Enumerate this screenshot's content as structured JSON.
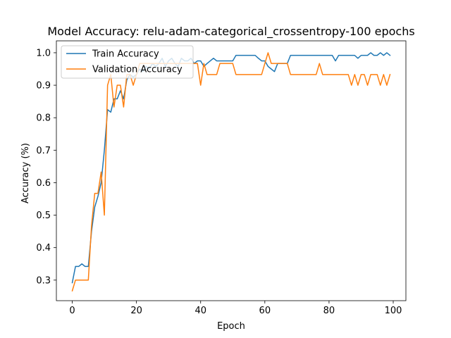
{
  "chart_data": {
    "type": "line",
    "title": "Model Accuracy: relu-adam-categorical_crossentropy-100 epochs",
    "xlabel": "Epoch",
    "ylabel": "Accuracy (%)",
    "xlim": [
      -4.95,
      103.95
    ],
    "ylim": [
      0.2367,
      1.0367
    ],
    "xticks": [
      0,
      20,
      40,
      60,
      80,
      100
    ],
    "yticks": [
      0.3,
      0.4,
      0.5,
      0.6,
      0.7,
      0.8,
      0.9,
      1.0
    ],
    "grid": false,
    "legend_position": "upper-left",
    "series": [
      {
        "name": "Train Accuracy",
        "color": "#1f77b4",
        "x": [
          0,
          1,
          2,
          3,
          4,
          5,
          6,
          7,
          8,
          9,
          10,
          11,
          12,
          13,
          14,
          15,
          16,
          17,
          18,
          19,
          20,
          21,
          22,
          23,
          24,
          25,
          26,
          27,
          28,
          29,
          30,
          31,
          32,
          33,
          34,
          35,
          36,
          37,
          38,
          39,
          40,
          41,
          42,
          43,
          44,
          45,
          46,
          47,
          48,
          49,
          50,
          51,
          52,
          53,
          54,
          55,
          56,
          57,
          58,
          59,
          60,
          61,
          62,
          63,
          64,
          65,
          66,
          67,
          68,
          69,
          70,
          71,
          72,
          73,
          74,
          75,
          76,
          77,
          78,
          79,
          80,
          81,
          82,
          83,
          84,
          85,
          86,
          87,
          88,
          89,
          90,
          91,
          92,
          93,
          94,
          95,
          96,
          97,
          98,
          99
        ],
        "values": [
          0.292,
          0.342,
          0.342,
          0.35,
          0.342,
          0.342,
          0.45,
          0.525,
          0.558,
          0.6,
          0.7,
          0.825,
          0.817,
          0.858,
          0.858,
          0.883,
          0.858,
          0.917,
          0.933,
          0.925,
          0.933,
          0.95,
          0.942,
          0.958,
          0.95,
          0.967,
          0.958,
          0.967,
          0.983,
          0.958,
          0.975,
          0.983,
          0.967,
          0.958,
          0.983,
          0.975,
          0.975,
          0.983,
          0.967,
          0.975,
          0.975,
          0.958,
          0.967,
          0.975,
          0.983,
          0.975,
          0.975,
          0.975,
          0.975,
          0.975,
          0.975,
          0.992,
          0.992,
          0.992,
          0.992,
          0.992,
          0.992,
          0.992,
          0.983,
          0.975,
          0.975,
          0.958,
          0.95,
          0.942,
          0.967,
          0.967,
          0.967,
          0.967,
          0.992,
          0.992,
          0.992,
          0.992,
          0.992,
          0.992,
          0.992,
          0.992,
          0.992,
          0.992,
          0.992,
          0.992,
          0.992,
          0.992,
          0.975,
          0.992,
          0.992,
          0.992,
          0.992,
          0.992,
          0.992,
          0.983,
          0.992,
          0.992,
          0.992,
          1.0,
          0.992,
          0.992,
          1.0,
          0.992,
          1.0,
          0.992
        ]
      },
      {
        "name": "Validation Accuracy",
        "color": "#ff7f0e",
        "x": [
          0,
          1,
          2,
          3,
          4,
          5,
          6,
          7,
          8,
          9,
          10,
          11,
          12,
          13,
          14,
          15,
          16,
          17,
          18,
          19,
          20,
          21,
          22,
          23,
          24,
          25,
          26,
          27,
          28,
          29,
          30,
          31,
          32,
          33,
          34,
          35,
          36,
          37,
          38,
          39,
          40,
          41,
          42,
          43,
          44,
          45,
          46,
          47,
          48,
          49,
          50,
          51,
          52,
          53,
          54,
          55,
          56,
          57,
          58,
          59,
          60,
          61,
          62,
          63,
          64,
          65,
          66,
          67,
          68,
          69,
          70,
          71,
          72,
          73,
          74,
          75,
          76,
          77,
          78,
          79,
          80,
          81,
          82,
          83,
          84,
          85,
          86,
          87,
          88,
          89,
          90,
          91,
          92,
          93,
          94,
          95,
          96,
          97,
          98,
          99
        ],
        "values": [
          0.267,
          0.3,
          0.3,
          0.3,
          0.3,
          0.3,
          0.467,
          0.567,
          0.567,
          0.633,
          0.5,
          0.9,
          0.933,
          0.833,
          0.9,
          0.9,
          0.833,
          0.933,
          0.933,
          0.9,
          0.933,
          0.967,
          0.967,
          0.967,
          0.967,
          0.967,
          0.967,
          0.967,
          0.967,
          0.967,
          0.967,
          0.967,
          0.967,
          0.967,
          0.967,
          0.967,
          0.967,
          0.967,
          0.967,
          0.967,
          0.9,
          0.967,
          0.933,
          0.933,
          0.933,
          0.933,
          0.967,
          0.967,
          0.967,
          0.967,
          0.967,
          0.933,
          0.933,
          0.933,
          0.933,
          0.933,
          0.933,
          0.933,
          0.933,
          0.933,
          0.967,
          1.0,
          0.967,
          0.967,
          0.967,
          0.967,
          0.967,
          0.967,
          0.933,
          0.933,
          0.933,
          0.933,
          0.933,
          0.933,
          0.933,
          0.933,
          0.933,
          0.967,
          0.933,
          0.933,
          0.933,
          0.933,
          0.933,
          0.933,
          0.933,
          0.933,
          0.933,
          0.9,
          0.933,
          0.9,
          0.933,
          0.933,
          0.9,
          0.933,
          0.933,
          0.933,
          0.9,
          0.933,
          0.9,
          0.933
        ]
      }
    ]
  }
}
